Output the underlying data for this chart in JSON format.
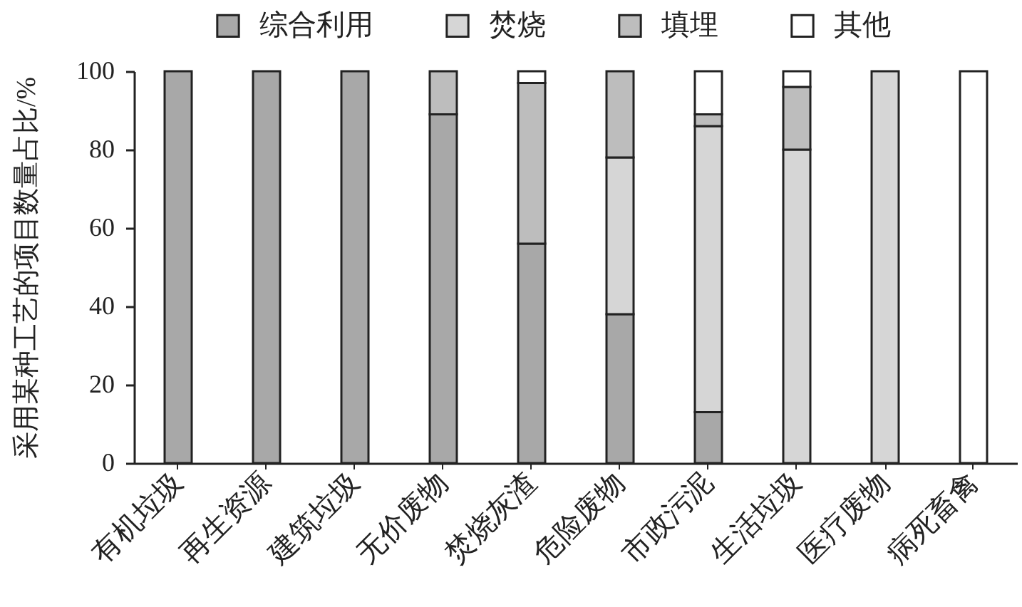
{
  "chart_data": {
    "type": "bar",
    "stacked": true,
    "ylabel": "采用某种工艺的项目数量占比/%",
    "categories": [
      "有机垃圾",
      "再生资源",
      "建筑垃圾",
      "无价废物",
      "焚烧灰渣",
      "危险废物",
      "市政污泥",
      "生活垃圾",
      "医疗废物",
      "病死畜禽"
    ],
    "series": [
      {
        "name": "综合利用",
        "color": "#a8a8a8",
        "values": [
          100,
          100,
          100,
          89,
          56,
          38,
          13,
          0,
          0,
          0
        ]
      },
      {
        "name": "焚烧",
        "color": "#d6d6d6",
        "values": [
          0,
          0,
          0,
          0,
          0,
          40,
          73,
          80,
          100,
          0
        ]
      },
      {
        "name": "填埋",
        "color": "#bdbdbd",
        "values": [
          0,
          0,
          0,
          11,
          41,
          22,
          3,
          16,
          0,
          0
        ]
      },
      {
        "name": "其他",
        "color": "#ffffff",
        "values": [
          0,
          0,
          0,
          0,
          3,
          0,
          11,
          4,
          0,
          100
        ]
      }
    ],
    "ylim": [
      0,
      100
    ],
    "yticks": [
      0,
      20,
      40,
      60,
      80,
      100
    ],
    "legend": "top"
  }
}
